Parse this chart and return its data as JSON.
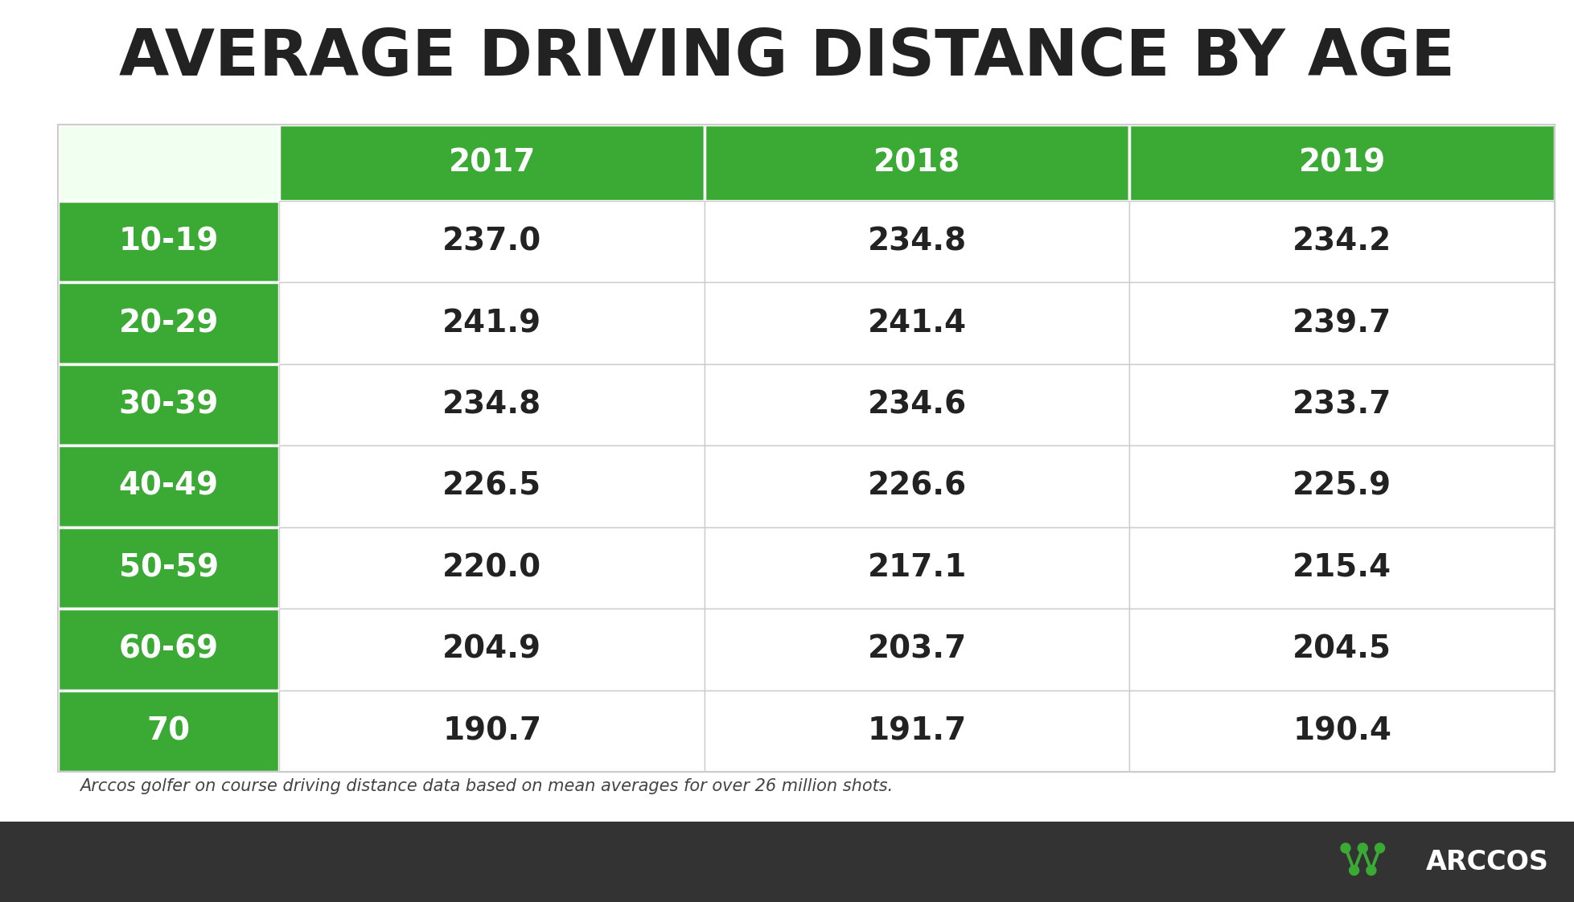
{
  "title": "AVERAGE DRIVING DISTANCE BY AGE",
  "subtitle": "Arccos golfer on course driving distance data based on mean averages for over 26 million shots.",
  "columns": [
    "2017",
    "2018",
    "2019"
  ],
  "rows": [
    "10-19",
    "20-29",
    "30-39",
    "40-49",
    "50-59",
    "60-69",
    "70"
  ],
  "values": [
    [
      237.0,
      234.8,
      234.2
    ],
    [
      241.9,
      241.4,
      239.7
    ],
    [
      234.8,
      234.6,
      233.7
    ],
    [
      226.5,
      226.6,
      225.9
    ],
    [
      220.0,
      217.1,
      215.4
    ],
    [
      204.9,
      203.7,
      204.5
    ],
    [
      190.7,
      191.7,
      190.4
    ]
  ],
  "header_bg": "#3aaa35",
  "row_label_bg": "#3aaa35",
  "row_label_color": "#ffffff",
  "header_color": "#ffffff",
  "cell_bg": "#ffffff",
  "cell_text_color": "#222222",
  "title_color": "#222222",
  "footer_bg": "#333333",
  "subtitle_color": "#444444",
  "top_label_bg": "#f0fff0",
  "arccos_green": "#3aaa35",
  "border_color": "#cccccc",
  "white_line": "#ffffff"
}
